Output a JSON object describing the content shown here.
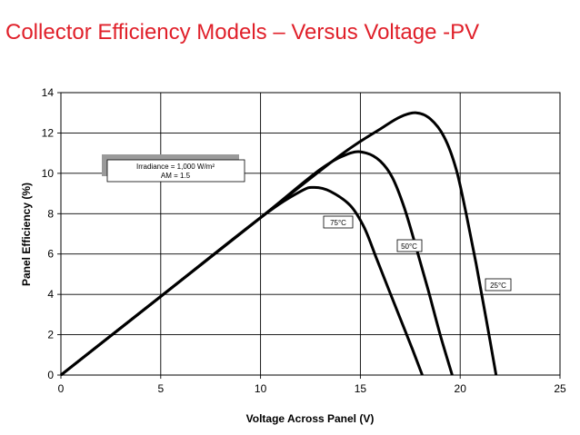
{
  "slide": {
    "title": "Collector Efficiency Models – Versus Voltage -PV",
    "title_color": "#e0202a"
  },
  "chart_data": {
    "type": "line",
    "title": "",
    "xlabel": "Voltage Across Panel (V)",
    "ylabel": "Panel Efficiency (%)",
    "xlim": [
      0,
      25
    ],
    "ylim": [
      0,
      14
    ],
    "x_ticks": [
      "0",
      "5",
      "10",
      "15",
      "20",
      "25"
    ],
    "y_ticks": [
      "0",
      "2",
      "4",
      "6",
      "8",
      "10",
      "12",
      "14"
    ],
    "grid": true,
    "annotation": {
      "line1": "Irradiance = 1,000 W/m²",
      "line2": "AM = 1.5"
    },
    "series": [
      {
        "name": "25°C",
        "x": [
          0,
          5,
          10,
          14,
          16,
          17,
          17.8,
          18.5,
          19.2,
          19.8,
          20.3,
          20.8,
          21.3,
          21.8
        ],
        "y": [
          0,
          3.9,
          7.8,
          10.9,
          12.2,
          12.8,
          13.0,
          12.7,
          11.8,
          10.2,
          8.0,
          5.5,
          2.8,
          0
        ]
      },
      {
        "name": "50°C",
        "x": [
          0,
          5,
          10,
          13,
          14.5,
          15.3,
          16,
          16.6,
          17.2,
          17.8,
          18.4,
          19.0,
          19.6
        ],
        "y": [
          0,
          3.9,
          7.8,
          10.2,
          11.0,
          11.0,
          10.6,
          9.8,
          8.3,
          6.3,
          4.2,
          2.0,
          0
        ]
      },
      {
        "name": "75°C",
        "x": [
          0,
          5,
          10,
          12,
          12.7,
          13.5,
          14.5,
          15.2,
          15.8,
          16.4,
          17.0,
          17.6,
          18.1
        ],
        "y": [
          0,
          3.9,
          7.8,
          9.1,
          9.3,
          9.1,
          8.4,
          7.3,
          5.8,
          4.3,
          2.8,
          1.3,
          0
        ]
      }
    ]
  }
}
